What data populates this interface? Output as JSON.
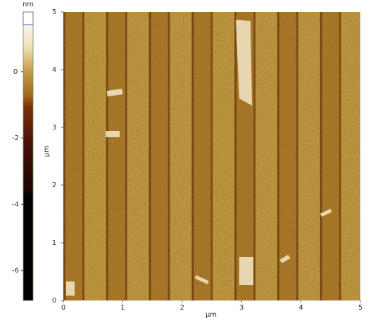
{
  "chart_data": {
    "type": "image",
    "xlabel": "μm",
    "ylabel": "μm",
    "xlim": [
      0,
      5
    ],
    "xticks": [
      0,
      1,
      2,
      3,
      4,
      5
    ],
    "ylim": [
      0,
      5
    ],
    "yticks": [
      0,
      1,
      2,
      3,
      4,
      5
    ],
    "colorbar": {
      "label": "nm",
      "lim": [
        -6.9,
        1.8
      ],
      "ticks": [
        0,
        -2,
        -4,
        -6
      ]
    }
  }
}
